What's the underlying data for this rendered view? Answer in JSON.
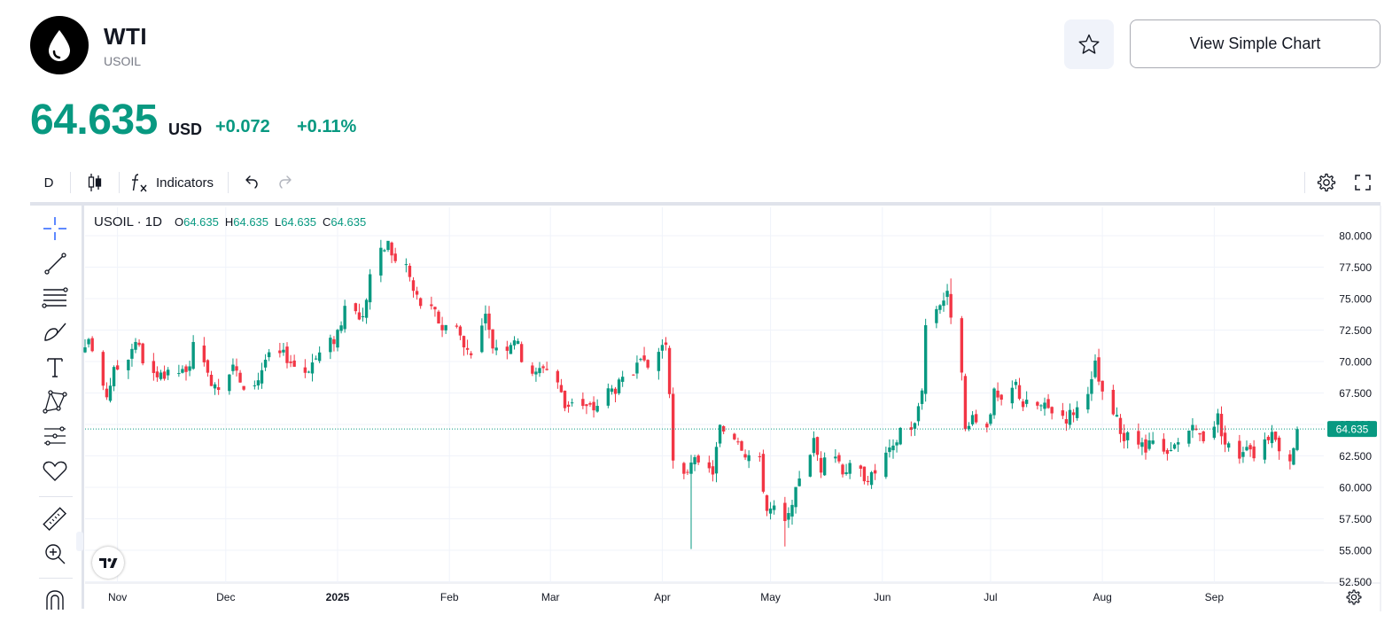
{
  "header": {
    "name": "WTI",
    "ticker": "USOIL",
    "simple_chart_label": "View Simple Chart"
  },
  "quote": {
    "price": "64.635",
    "currency": "USD",
    "change": "+0.072",
    "change_percent": "+0.11%"
  },
  "toolbar": {
    "interval": "D",
    "indicators_label": "Indicators"
  },
  "legend": {
    "symbol": "USOIL · 1D",
    "o_label": "O",
    "o_value": "64.635",
    "h_label": "H",
    "h_value": "64.635",
    "l_label": "L",
    "l_value": "64.635",
    "c_label": "C",
    "c_value": "64.635"
  },
  "icons": {
    "logo": "oil-drop-icon",
    "favorite": "star-icon",
    "chart_type": "candles-icon",
    "indicators": "fx-icon",
    "undo": "undo-icon",
    "redo": "redo-icon",
    "settings": "gear-icon",
    "fullscreen": "fullscreen-icon",
    "drawing_tools": [
      "crosshair-icon",
      "trend-line-icon",
      "fib-lines-icon",
      "brush-icon",
      "text-icon",
      "pattern-icon",
      "forecast-icon",
      "heart-icon",
      "ruler-icon",
      "zoom-in-icon",
      "magnet-icon"
    ]
  },
  "colors": {
    "up": "#089981",
    "down": "#f23645",
    "accent": "#2962ff"
  },
  "chart_data": {
    "type": "candlestick",
    "symbol": "USOIL",
    "interval": "1D",
    "ylim": [
      52.5,
      80
    ],
    "y_ticks": [
      "80.000",
      "77.500",
      "75.000",
      "72.500",
      "70.000",
      "67.500",
      "65.000",
      "62.500",
      "60.000",
      "57.500",
      "55.000",
      "52.500"
    ],
    "x_tick_labels": [
      {
        "label": "Nov",
        "date": "2024-11-01"
      },
      {
        "label": "Dec",
        "date": "2024-12-01"
      },
      {
        "label": "2025",
        "date": "2025-01-01"
      },
      {
        "label": "Feb",
        "date": "2025-02-01"
      },
      {
        "label": "Mar",
        "date": "2025-03-01"
      },
      {
        "label": "Apr",
        "date": "2025-04-01"
      },
      {
        "label": "May",
        "date": "2025-05-01"
      },
      {
        "label": "Jun",
        "date": "2025-06-01"
      },
      {
        "label": "Jul",
        "date": "2025-07-01"
      },
      {
        "label": "Aug",
        "date": "2025-08-01"
      },
      {
        "label": "Sep",
        "date": "2025-09-01"
      }
    ],
    "last_price": 64.635,
    "last_price_label": "64.635",
    "x_start": "2024-10-23",
    "x_end": "2025-09-24",
    "close_series": [
      [
        "2024-10-23",
        70.7
      ],
      [
        "2024-10-24",
        71.9
      ],
      [
        "2024-10-28",
        67.6
      ],
      [
        "2024-10-29",
        67.4
      ],
      [
        "2024-10-31",
        69.2
      ],
      [
        "2024-11-04",
        70.5
      ],
      [
        "2024-11-06",
        71.8
      ],
      [
        "2024-11-08",
        70.2
      ],
      [
        "2024-11-12",
        68.4
      ],
      [
        "2024-11-14",
        68.8
      ],
      [
        "2024-11-18",
        69.2
      ],
      [
        "2024-11-20",
        68.9
      ],
      [
        "2024-11-22",
        71.2
      ],
      [
        "2024-11-26",
        68.8
      ],
      [
        "2024-11-29",
        68.2
      ],
      [
        "2024-12-03",
        69.9
      ],
      [
        "2024-12-06",
        67.4
      ],
      [
        "2024-12-10",
        68.7
      ],
      [
        "2024-12-12",
        70.2
      ],
      [
        "2024-12-16",
        70.5
      ],
      [
        "2024-12-18",
        70.4
      ],
      [
        "2024-12-20",
        69.7
      ],
      [
        "2024-12-23",
        69.3
      ],
      [
        "2024-12-27",
        70.6
      ],
      [
        "2024-12-31",
        71.8
      ],
      [
        "2025-01-03",
        73.9
      ],
      [
        "2025-01-06",
        74.0
      ],
      [
        "2025-01-08",
        73.4
      ],
      [
        "2025-01-10",
        77.0
      ],
      [
        "2025-01-13",
        78.6
      ],
      [
        "2025-01-15",
        79.4
      ],
      [
        "2025-01-17",
        77.9
      ],
      [
        "2025-01-20",
        77.7
      ],
      [
        "2025-01-22",
        75.6
      ],
      [
        "2025-01-24",
        74.6
      ],
      [
        "2025-01-28",
        73.8
      ],
      [
        "2025-01-30",
        72.7
      ],
      [
        "2025-02-03",
        73.2
      ],
      [
        "2025-02-05",
        71.0
      ],
      [
        "2025-02-07",
        71.0
      ],
      [
        "2025-02-11",
        73.3
      ],
      [
        "2025-02-13",
        71.3
      ],
      [
        "2025-02-17",
        71.3
      ],
      [
        "2025-02-19",
        72.0
      ],
      [
        "2025-02-21",
        70.4
      ],
      [
        "2025-02-25",
        68.9
      ],
      [
        "2025-02-27",
        69.8
      ],
      [
        "2025-03-03",
        68.4
      ],
      [
        "2025-03-05",
        66.4
      ],
      [
        "2025-03-07",
        67.0
      ],
      [
        "2025-03-11",
        66.3
      ],
      [
        "2025-03-13",
        66.3
      ],
      [
        "2025-03-17",
        67.6
      ],
      [
        "2025-03-20",
        68.1
      ],
      [
        "2025-03-24",
        69.1
      ],
      [
        "2025-03-26",
        69.7
      ],
      [
        "2025-03-28",
        69.5
      ],
      [
        "2025-04-01",
        71.3
      ],
      [
        "2025-04-02",
        71.6
      ],
      [
        "2025-04-03",
        66.9
      ],
      [
        "2025-04-04",
        61.9
      ],
      [
        "2025-04-07",
        60.7
      ],
      [
        "2025-04-09",
        62.3
      ],
      [
        "2025-04-11",
        61.5
      ],
      [
        "2025-04-15",
        61.3
      ],
      [
        "2025-04-17",
        64.7
      ],
      [
        "2025-04-22",
        64.0
      ],
      [
        "2025-04-24",
        62.8
      ],
      [
        "2025-04-28",
        62.0
      ],
      [
        "2025-04-30",
        58.2
      ],
      [
        "2025-05-02",
        58.2
      ],
      [
        "2025-05-05",
        57.1
      ],
      [
        "2025-05-07",
        58.1
      ],
      [
        "2025-05-09",
        61.0
      ],
      [
        "2025-05-13",
        63.6
      ],
      [
        "2025-05-15",
        61.6
      ],
      [
        "2025-05-19",
        62.7
      ],
      [
        "2025-05-21",
        61.5
      ],
      [
        "2025-05-23",
        61.5
      ],
      [
        "2025-05-27",
        61.0
      ],
      [
        "2025-05-29",
        60.8
      ],
      [
        "2025-06-02",
        62.6
      ],
      [
        "2025-06-04",
        62.9
      ],
      [
        "2025-06-06",
        64.7
      ],
      [
        "2025-06-10",
        64.9
      ],
      [
        "2025-06-12",
        68.1
      ],
      [
        "2025-06-13",
        72.9
      ],
      [
        "2025-06-17",
        74.8
      ],
      [
        "2025-06-19",
        75.2
      ],
      [
        "2025-06-20",
        73.9
      ],
      [
        "2025-06-23",
        68.6
      ],
      [
        "2025-06-24",
        64.4
      ],
      [
        "2025-06-26",
        65.2
      ],
      [
        "2025-06-30",
        65.1
      ],
      [
        "2025-07-02",
        67.4
      ],
      [
        "2025-07-04",
        66.5
      ],
      [
        "2025-07-08",
        68.2
      ],
      [
        "2025-07-10",
        66.6
      ],
      [
        "2025-07-14",
        66.5
      ],
      [
        "2025-07-16",
        66.3
      ],
      [
        "2025-07-18",
        66.2
      ],
      [
        "2025-07-22",
        65.6
      ],
      [
        "2025-07-24",
        66.1
      ],
      [
        "2025-07-28",
        66.9
      ],
      [
        "2025-07-30",
        69.7
      ],
      [
        "2025-08-01",
        67.2
      ],
      [
        "2025-08-05",
        65.3
      ],
      [
        "2025-08-07",
        63.9
      ],
      [
        "2025-08-11",
        63.6
      ],
      [
        "2025-08-13",
        62.9
      ],
      [
        "2025-08-15",
        63.5
      ],
      [
        "2025-08-19",
        62.3
      ],
      [
        "2025-08-21",
        63.2
      ],
      [
        "2025-08-25",
        64.6
      ],
      [
        "2025-08-27",
        64.3
      ],
      [
        "2025-08-29",
        64.0
      ],
      [
        "2025-09-02",
        65.6
      ],
      [
        "2025-09-04",
        63.5
      ],
      [
        "2025-09-08",
        62.6
      ],
      [
        "2025-09-10",
        63.7
      ],
      [
        "2025-09-12",
        62.7
      ],
      [
        "2025-09-16",
        64.2
      ],
      [
        "2025-09-18",
        63.6
      ],
      [
        "2025-09-22",
        62.3
      ],
      [
        "2025-09-23",
        63.4
      ],
      [
        "2025-09-24",
        64.6
      ]
    ],
    "notable_points": {
      "high": {
        "date": "2025-01-15",
        "value": 79.4
      },
      "low_april": {
        "date": "2025-04-09",
        "value": 55.1
      },
      "low_may": {
        "date": "2025-05-05",
        "value": 55.3
      },
      "june_spike": {
        "date": "2025-06-20",
        "value": 76.6
      }
    }
  }
}
